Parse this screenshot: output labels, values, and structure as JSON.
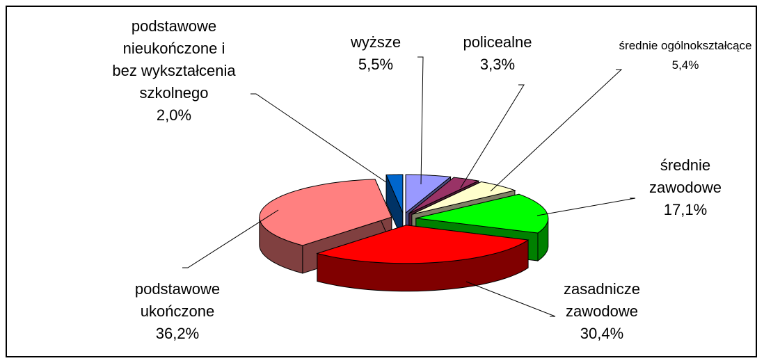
{
  "chart_data": {
    "type": "pie3d",
    "categories": [
      "podstawowe nieukończone i bez wykształcenia szkolnego",
      "wyższe",
      "policealne",
      "średnie ogólnokształcące",
      "średnie zawodowe",
      "zasadnicze zawodowe",
      "podstawowe ukończone"
    ],
    "values": [
      2.0,
      5.5,
      3.3,
      5.4,
      17.1,
      30.4,
      36.2
    ],
    "value_labels": [
      "2,0%",
      "5,5%",
      "3,3%",
      "5,4%",
      "17,1%",
      "30,4%",
      "36,2%"
    ],
    "colors": [
      "#0066cc",
      "#9999ff",
      "#993366",
      "#ffffcc",
      "#00ff00",
      "#ff0000",
      "#ff8080"
    ]
  }
}
